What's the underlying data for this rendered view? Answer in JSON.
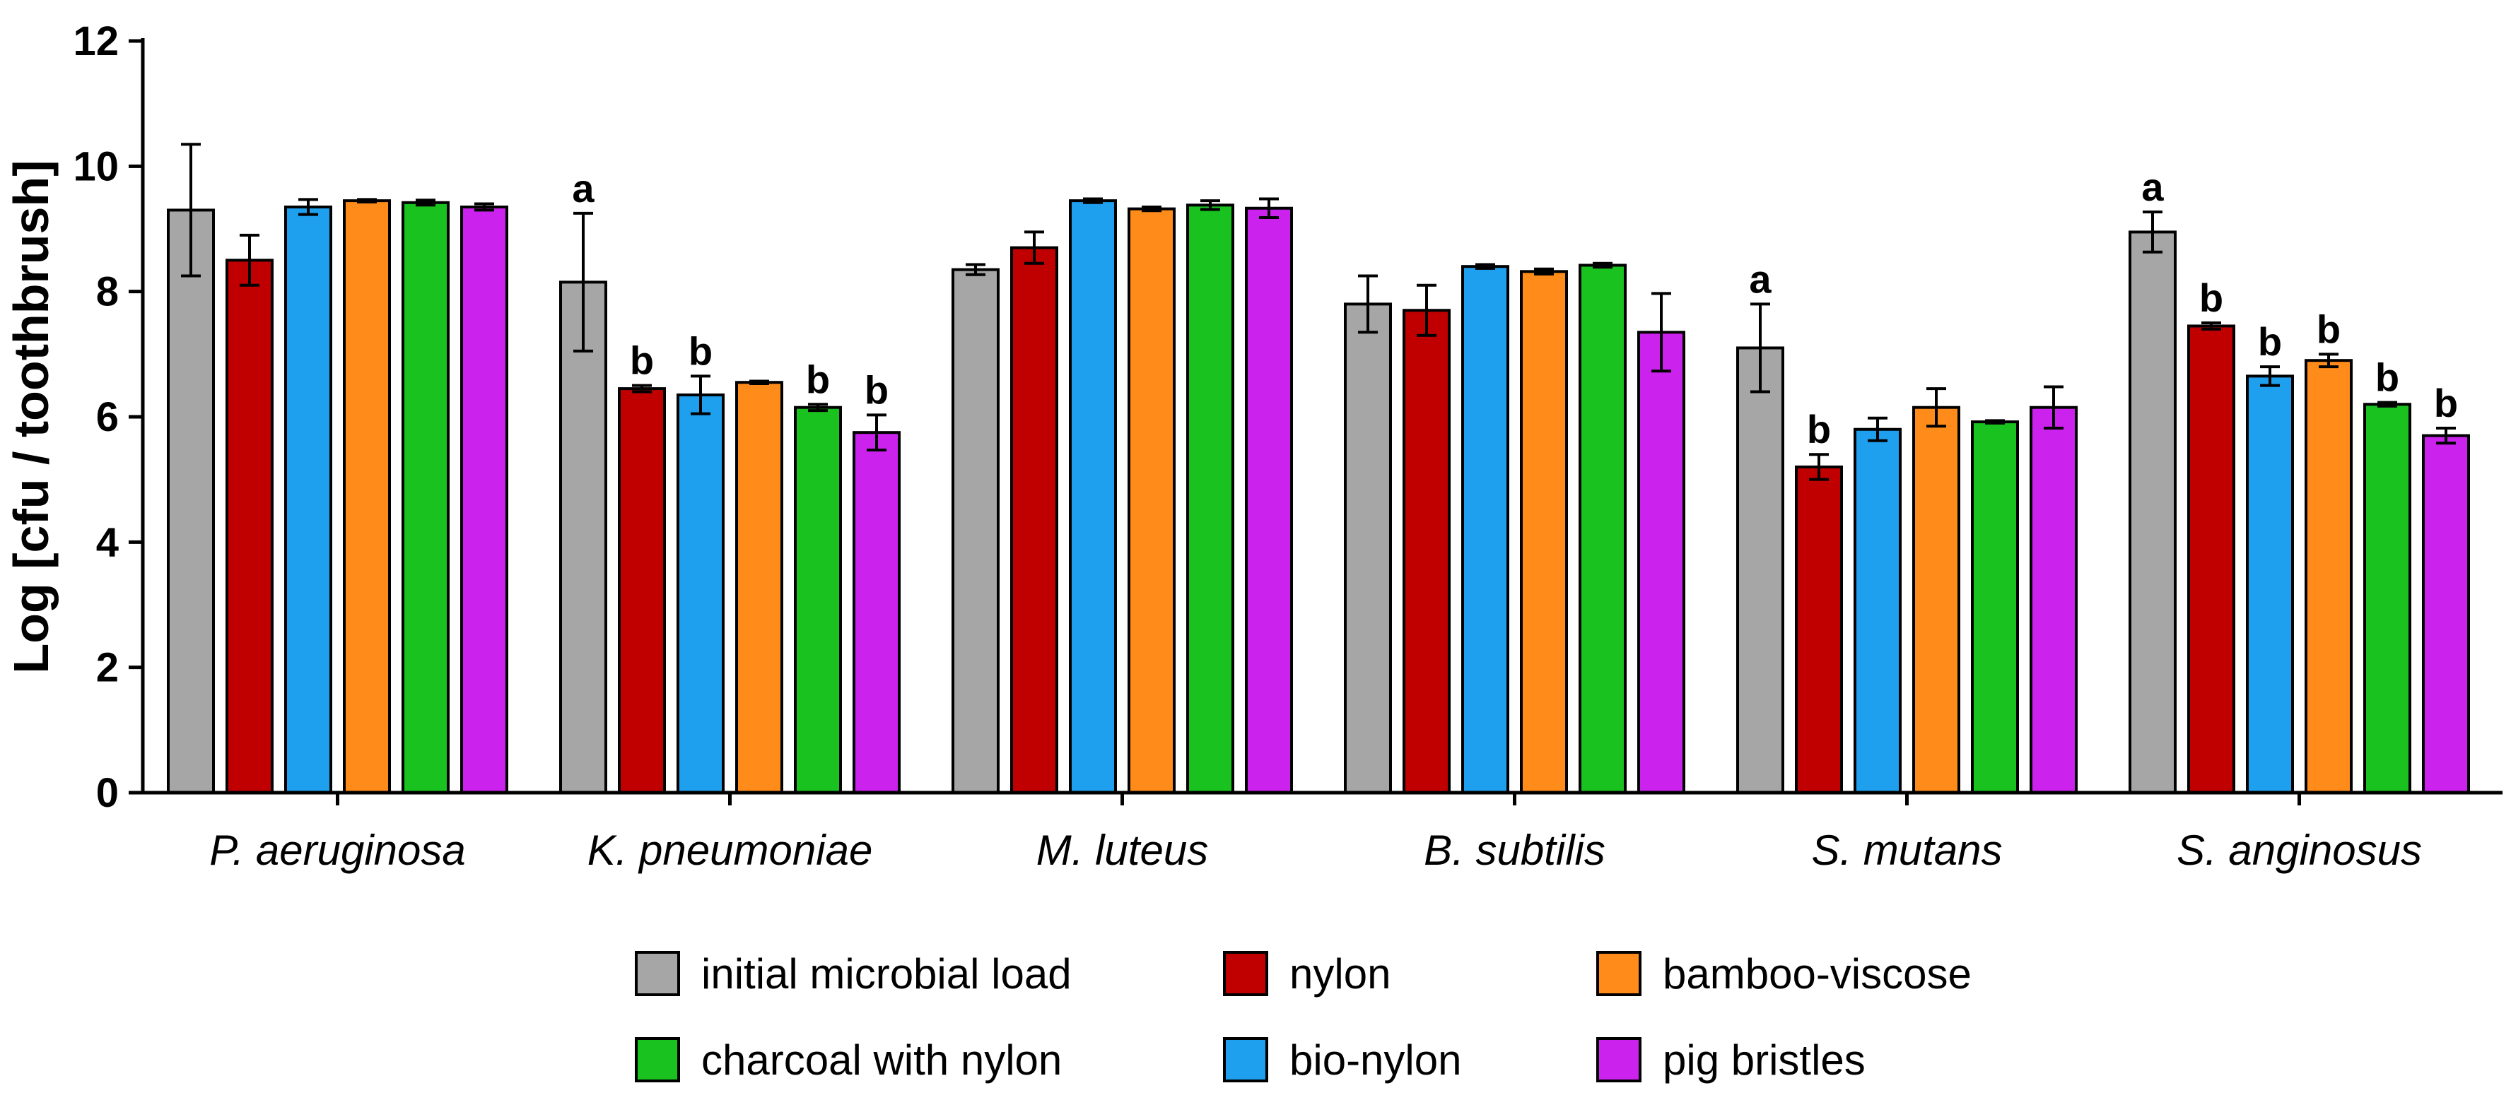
{
  "chart_data": {
    "type": "bar",
    "title": "",
    "xlabel": "",
    "ylabel": "Log [cfu / toothbrush]",
    "ylim": [
      0,
      12
    ],
    "yticks": [
      "0",
      "2",
      "4",
      "6",
      "8",
      "10",
      "12"
    ],
    "categories": [
      "P. aeruginosa",
      "K. pneumoniae",
      "M. luteus",
      "B. subtilis",
      "S. mutans",
      "S. anginosus"
    ],
    "series": [
      {
        "name": "initial microbial load",
        "color": "#a6a6a6",
        "values": [
          9.3,
          8.15,
          8.35,
          7.8,
          7.1,
          8.95
        ],
        "errors": [
          1.05,
          1.1,
          0.08,
          0.45,
          0.7,
          0.32
        ],
        "labels": [
          "",
          "a",
          "",
          "",
          "a",
          "a"
        ]
      },
      {
        "name": "nylon",
        "color": "#c00000",
        "values": [
          8.5,
          6.45,
          8.7,
          7.7,
          5.2,
          7.45
        ],
        "errors": [
          0.4,
          0.05,
          0.25,
          0.4,
          0.2,
          0.05
        ],
        "labels": [
          "",
          "b",
          "",
          "",
          "b",
          "b"
        ]
      },
      {
        "name": "bio-nylon",
        "color": "#1ea0ef",
        "values": [
          9.35,
          6.35,
          9.45,
          8.4,
          5.8,
          6.65
        ],
        "errors": [
          0.12,
          0.3,
          0.03,
          0.03,
          0.18,
          0.15
        ],
        "labels": [
          "",
          "b",
          "",
          "",
          "",
          "b"
        ]
      },
      {
        "name": "bamboo-viscose",
        "color": "#ff8c1a",
        "values": [
          9.45,
          6.55,
          9.32,
          8.32,
          6.15,
          6.9
        ],
        "errors": [
          0.02,
          0.02,
          0.03,
          0.04,
          0.3,
          0.1
        ],
        "labels": [
          "",
          "",
          "",
          "",
          "",
          "b"
        ]
      },
      {
        "name": "charcoal with nylon",
        "color": "#19c21f",
        "values": [
          9.42,
          6.15,
          9.38,
          8.42,
          5.92,
          6.2
        ],
        "errors": [
          0.04,
          0.05,
          0.07,
          0.03,
          0.02,
          0.03
        ],
        "labels": [
          "",
          "b",
          "",
          "",
          "",
          "b"
        ]
      },
      {
        "name": "pig bristles",
        "color": "#cc22ee",
        "values": [
          9.35,
          5.75,
          9.33,
          7.35,
          6.15,
          5.7
        ],
        "errors": [
          0.05,
          0.28,
          0.15,
          0.62,
          0.33,
          0.12
        ],
        "labels": [
          "",
          "b",
          "",
          "",
          "",
          "b"
        ]
      }
    ],
    "legend": {
      "position": "bottom-center",
      "rows": [
        [
          "initial microbial load",
          "nylon",
          "bamboo-viscose"
        ],
        [
          "charcoal with nylon",
          "bio-nylon",
          "pig bristles"
        ]
      ]
    }
  }
}
